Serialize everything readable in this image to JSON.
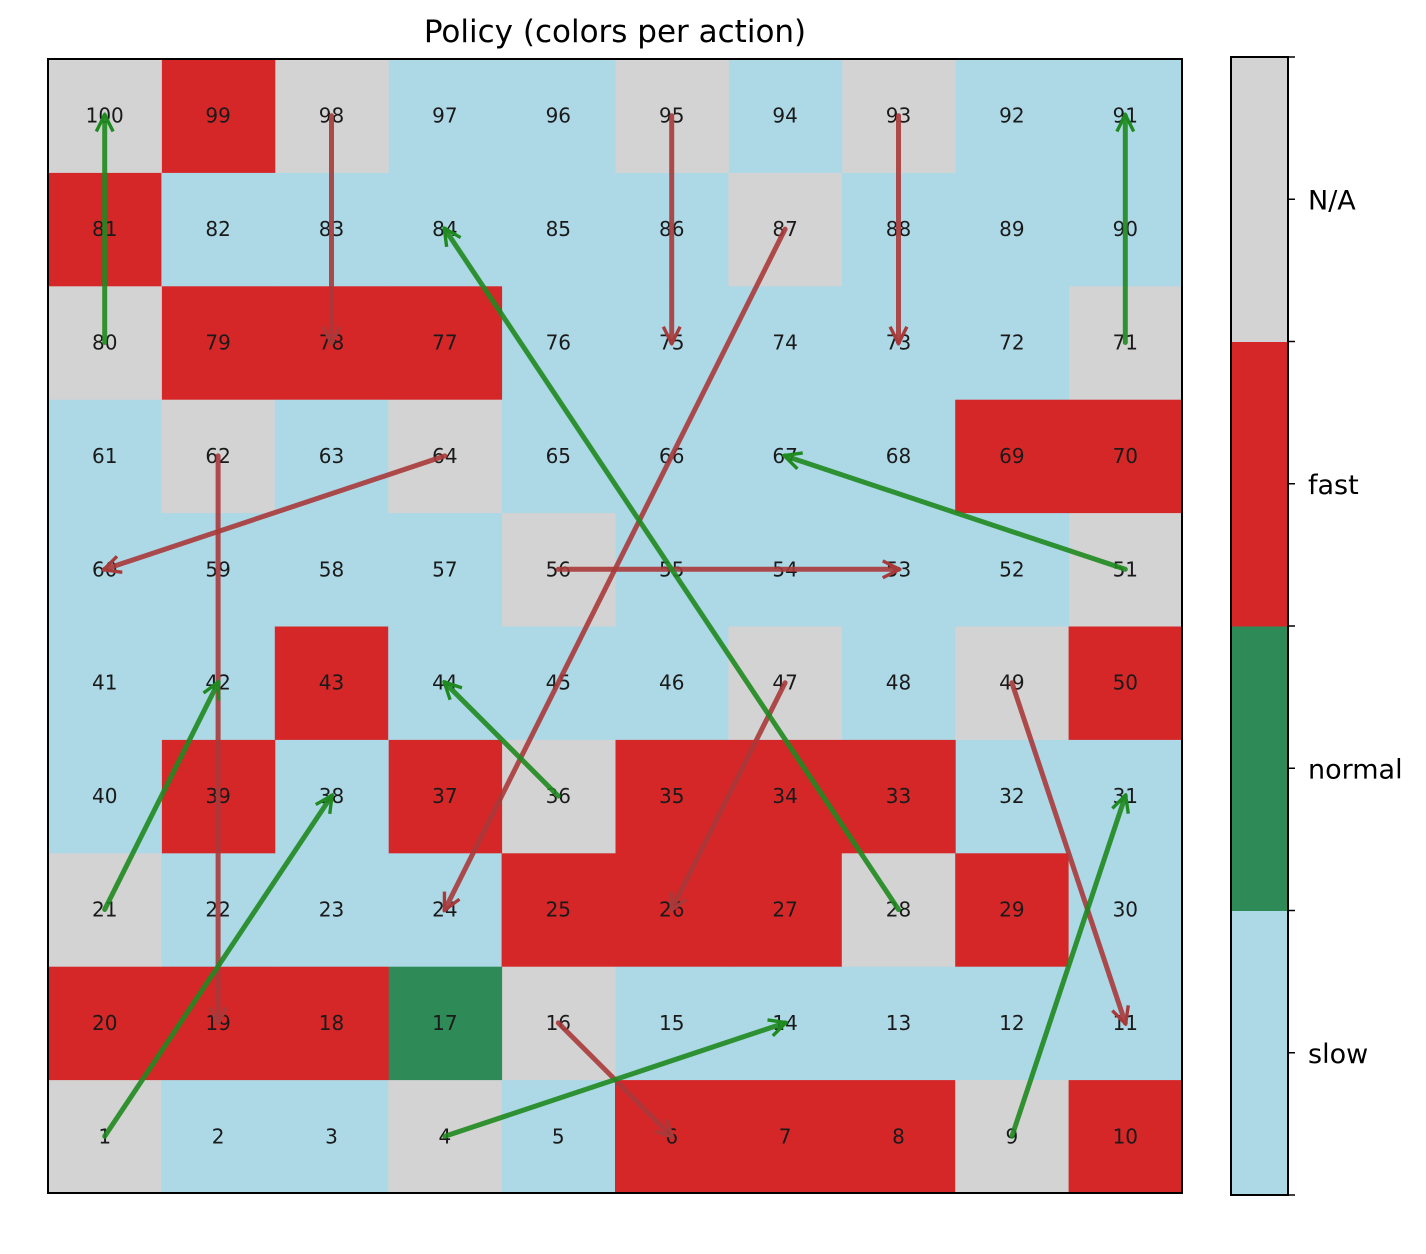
{
  "chart_data": {
    "type": "heatmap",
    "title": "Policy (colors per action)",
    "grid": {
      "rows": 10,
      "cols": 10,
      "layout": "boustrophedon",
      "start_bottom_left": 1,
      "end_top_left": 100
    },
    "categories": [
      "slow",
      "normal",
      "fast",
      "N/A"
    ],
    "colors": {
      "slow": "#add8e6",
      "normal": "#2e8b57",
      "fast": "#d62728",
      "N/A": "#d3d3d3"
    },
    "cells": {
      "1": "N/A",
      "2": "slow",
      "3": "slow",
      "4": "N/A",
      "5": "slow",
      "6": "fast",
      "7": "fast",
      "8": "fast",
      "9": "N/A",
      "10": "fast",
      "11": "slow",
      "12": "slow",
      "13": "slow",
      "14": "slow",
      "15": "slow",
      "16": "N/A",
      "17": "normal",
      "18": "fast",
      "19": "fast",
      "20": "fast",
      "21": "N/A",
      "22": "slow",
      "23": "slow",
      "24": "slow",
      "25": "fast",
      "26": "fast",
      "27": "fast",
      "28": "N/A",
      "29": "fast",
      "30": "slow",
      "31": "slow",
      "32": "slow",
      "33": "fast",
      "34": "fast",
      "35": "fast",
      "36": "N/A",
      "37": "fast",
      "38": "slow",
      "39": "fast",
      "40": "slow",
      "41": "slow",
      "42": "slow",
      "43": "fast",
      "44": "slow",
      "45": "slow",
      "46": "slow",
      "47": "N/A",
      "48": "slow",
      "49": "N/A",
      "50": "fast",
      "51": "N/A",
      "52": "slow",
      "53": "slow",
      "54": "slow",
      "55": "slow",
      "56": "N/A",
      "57": "slow",
      "58": "slow",
      "59": "slow",
      "60": "slow",
      "61": "slow",
      "62": "N/A",
      "63": "slow",
      "64": "N/A",
      "65": "slow",
      "66": "slow",
      "67": "slow",
      "68": "slow",
      "69": "fast",
      "70": "fast",
      "71": "N/A",
      "72": "slow",
      "73": "slow",
      "74": "slow",
      "75": "slow",
      "76": "slow",
      "77": "fast",
      "78": "fast",
      "79": "fast",
      "80": "N/A",
      "81": "fast",
      "82": "slow",
      "83": "slow",
      "84": "slow",
      "85": "slow",
      "86": "slow",
      "87": "N/A",
      "88": "slow",
      "89": "slow",
      "90": "slow",
      "91": "slow",
      "92": "slow",
      "93": "N/A",
      "94": "slow",
      "95": "N/A",
      "96": "slow",
      "97": "slow",
      "98": "N/A",
      "99": "fast",
      "100": "N/A"
    },
    "ladders": [
      {
        "from": 1,
        "to": 38
      },
      {
        "from": 4,
        "to": 14
      },
      {
        "from": 9,
        "to": 31
      },
      {
        "from": 21,
        "to": 42
      },
      {
        "from": 28,
        "to": 84
      },
      {
        "from": 36,
        "to": 44
      },
      {
        "from": 51,
        "to": 67
      },
      {
        "from": 71,
        "to": 91
      },
      {
        "from": 80,
        "to": 100
      }
    ],
    "snakes": [
      {
        "from": 16,
        "to": 6
      },
      {
        "from": 47,
        "to": 26
      },
      {
        "from": 49,
        "to": 11
      },
      {
        "from": 56,
        "to": 53
      },
      {
        "from": 62,
        "to": 19
      },
      {
        "from": 64,
        "to": 60
      },
      {
        "from": 87,
        "to": 24
      },
      {
        "from": 93,
        "to": 73
      },
      {
        "from": 95,
        "to": 75
      },
      {
        "from": 98,
        "to": 78
      }
    ],
    "arrow_colors": {
      "ladder": "#1f8a1f",
      "snake": "#a83a3a"
    },
    "colorbar": {
      "labels": [
        "slow",
        "normal",
        "fast",
        "N/A"
      ]
    }
  }
}
